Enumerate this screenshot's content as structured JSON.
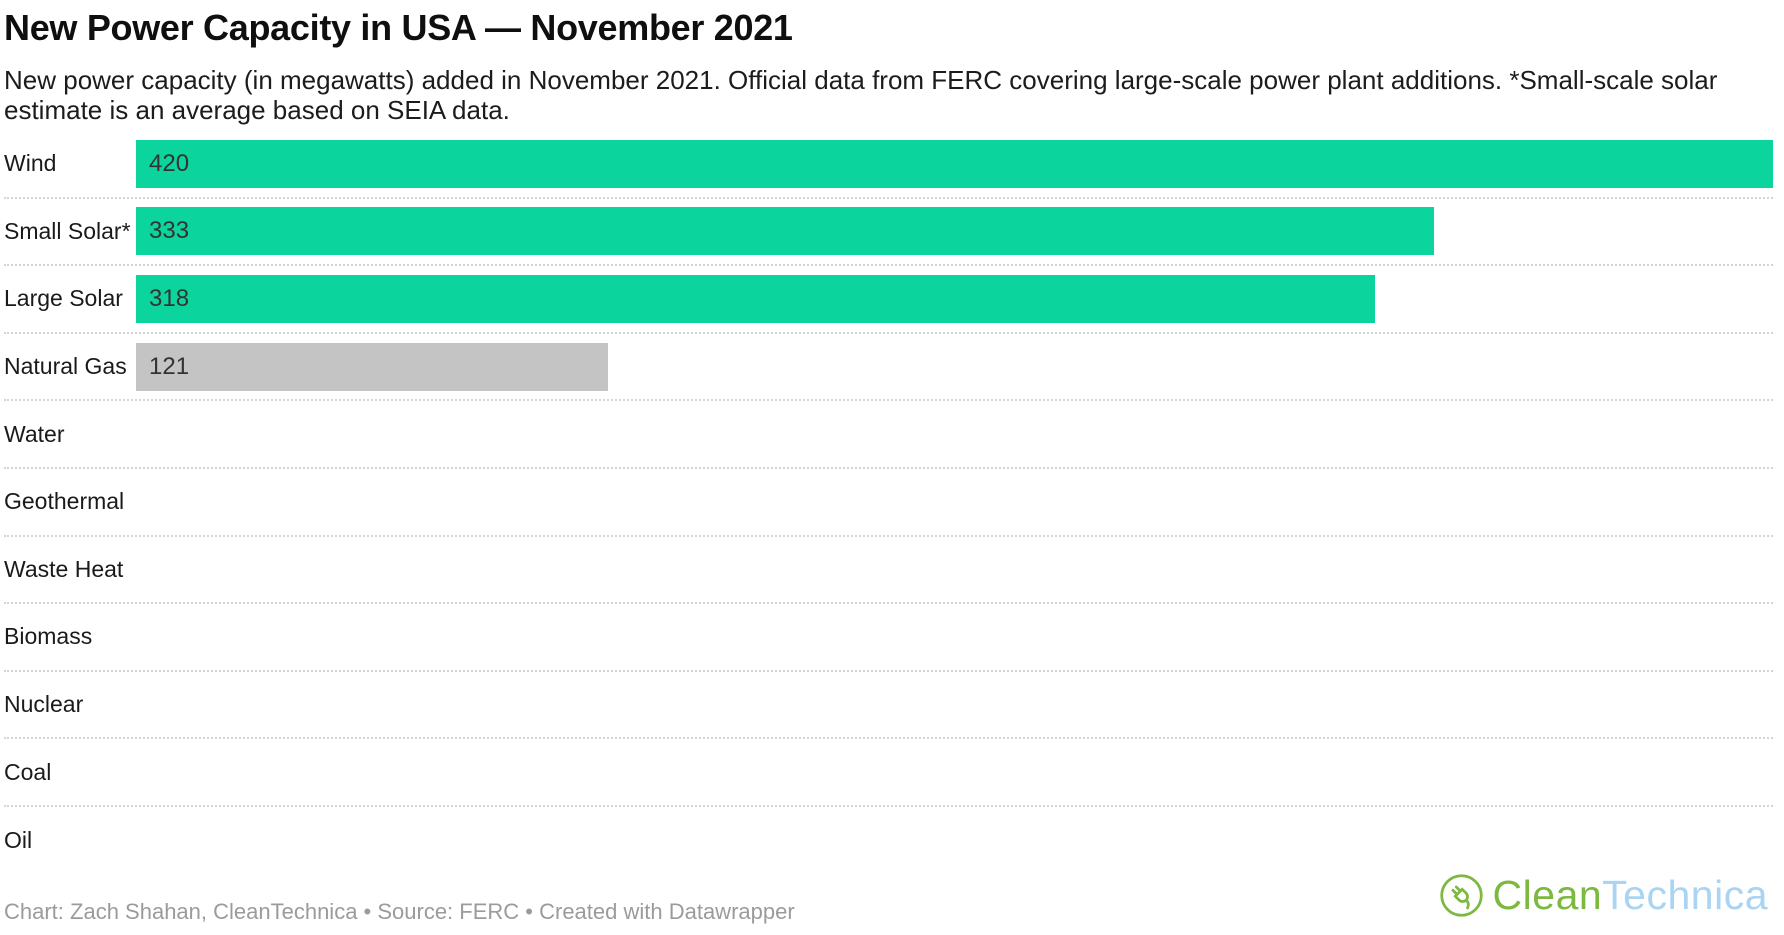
{
  "header": {
    "title": "New Power Capacity in USA — November 2021",
    "description": "New power capacity (in megawatts) added in November 2021. Official data from FERC covering large-scale power plant additions. *Small-scale solar estimate is an average based on SEIA data."
  },
  "chart_data": {
    "type": "bar",
    "orientation": "horizontal",
    "title": "New Power Capacity in USA — November 2021",
    "unit": "megawatts",
    "categories": [
      "Wind",
      "Small Solar*",
      "Large Solar",
      "Natural Gas",
      "Water",
      "Geothermal",
      "Waste Heat",
      "Biomass",
      "Nuclear",
      "Coal",
      "Oil"
    ],
    "values": [
      420,
      333,
      318,
      121,
      0,
      0,
      0,
      0,
      0,
      0,
      0
    ],
    "value_labels": [
      "420",
      "333",
      "318",
      "121",
      "",
      "",
      "",
      "",
      "",
      "",
      ""
    ],
    "xlim": [
      0,
      420
    ],
    "bar_color_keys": [
      "green",
      "green",
      "green",
      "gray",
      "none",
      "none",
      "none",
      "none",
      "none",
      "none",
      "none"
    ],
    "grid": "dotted-row-separators",
    "legend": "none",
    "value_label_position": "inside-start"
  },
  "colors": {
    "bar_green": "#0cd49d",
    "bar_gray": "#c4c4c4",
    "value_text": "#333333",
    "label_text": "#1a1a1a",
    "separator": "#d4d4d4",
    "footer_text": "#9b9b9b",
    "logo_green": "#7cb93e",
    "logo_blue": "#a9d4f3"
  },
  "footer": {
    "byline": "Chart: Zach Shahan, CleanTechnica • Source: FERC • Created with Datawrapper"
  },
  "logo": {
    "icon": "cleantechnica-plug-leaf-icon",
    "text_green": "Clean",
    "text_blue": "Technica"
  }
}
